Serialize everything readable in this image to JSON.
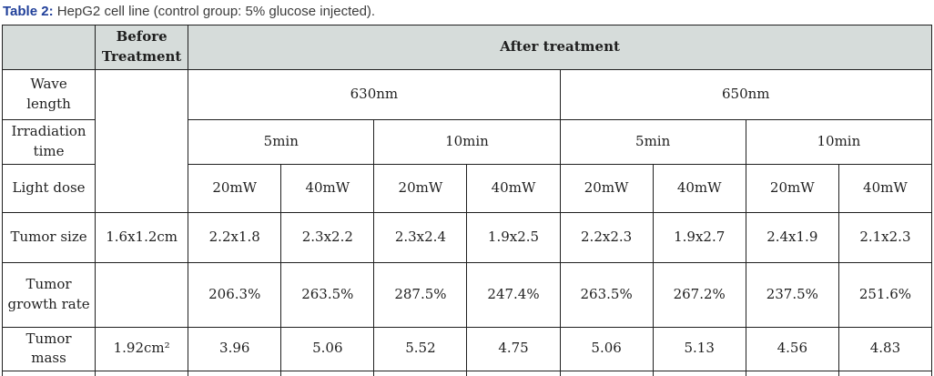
{
  "colors": {
    "header_bg": "#d6dcda",
    "border_color": "#1f1f1f",
    "title_label_color": "#21409a",
    "title_text_color": "#3c3c3c",
    "cell_text_color": "#1f1f1f",
    "bottom_bar_color": "#202425",
    "page_bg": "#ffffff"
  },
  "caption": {
    "label": "Table 2:",
    "text": " HepG2 cell line (control group: 5% glucose injected)."
  },
  "table": {
    "header": {
      "corner": "",
      "before_treatment": "Before Treatment",
      "after_treatment": "After treatment",
      "wave_length_label": "Wave length",
      "wavelengths": [
        "630nm",
        "650nm"
      ],
      "irradiation_time_label": "Irradiation time",
      "times": [
        "5min",
        "10min",
        "5min",
        "10min"
      ],
      "light_dose_label": "Light dose",
      "doses": [
        "20mW",
        "40mW",
        "20mW",
        "40mW",
        "20mW",
        "40mW",
        "20mW",
        "40mW"
      ]
    },
    "rows": [
      {
        "label": "Tumor size",
        "before": "1.6x1.2cm",
        "values": [
          "2.2x1.8",
          "2.3x2.2",
          "2.3x2.4",
          "1.9x2.5",
          "2.2x2.3",
          "1.9x2.7",
          "2.4x1.9",
          "2.1x2.3"
        ]
      },
      {
        "label": "Tumor growth rate",
        "before": "",
        "values": [
          "206.3%",
          "263.5%",
          "287.5%",
          "247.4%",
          "263.5%",
          "267.2%",
          "237.5%",
          "251.6%"
        ]
      },
      {
        "label": "Tumor mass",
        "before": "1.92cm²",
        "values": [
          "3.96",
          "5.06",
          "5.52",
          "4.75",
          "5.06",
          "5.13",
          "4.56",
          "4.83"
        ]
      }
    ]
  }
}
